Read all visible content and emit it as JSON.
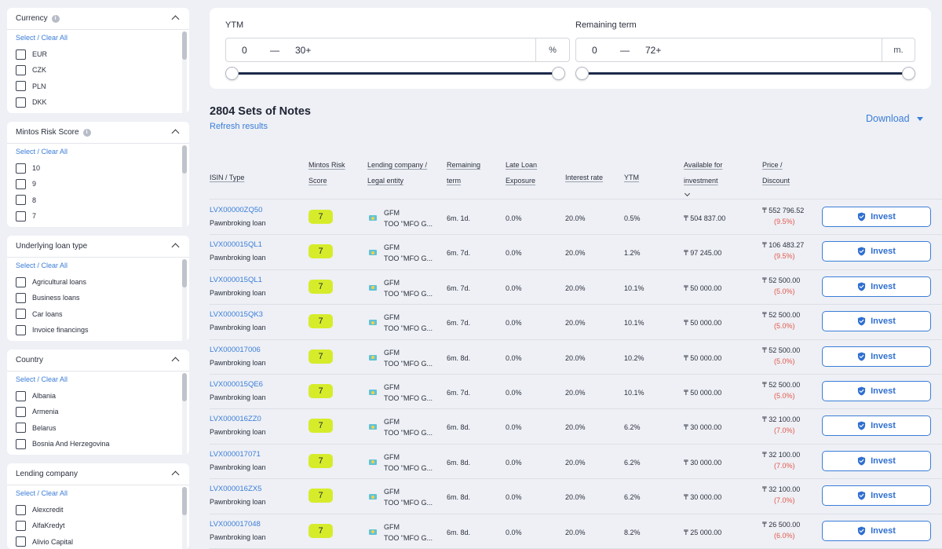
{
  "sidebar": {
    "select_clear": "Select / Clear All",
    "panels": [
      {
        "title": "Currency",
        "info": true,
        "items": [
          "EUR",
          "CZK",
          "PLN",
          "DKK"
        ]
      },
      {
        "title": "Mintos Risk Score",
        "info": true,
        "items": [
          "10",
          "9",
          "8",
          "7"
        ]
      },
      {
        "title": "Underlying loan type",
        "info": false,
        "items": [
          "Agricultural loans",
          "Business loans",
          "Car loans",
          "Invoice financings"
        ]
      },
      {
        "title": "Country",
        "info": false,
        "items": [
          "Albania",
          "Armenia",
          "Belarus",
          "Bosnia And Herzegovina"
        ]
      },
      {
        "title": "Lending company",
        "info": false,
        "items": [
          "Alexcredit",
          "AlfaKredyt",
          "Alivio Capital"
        ]
      }
    ]
  },
  "filters": {
    "ytm": {
      "label": "YTM",
      "from": "0",
      "dash": "—",
      "to": "30+",
      "unit": "%"
    },
    "term": {
      "label": "Remaining term",
      "from": "0",
      "dash": "—",
      "to": "72+",
      "unit": "m."
    }
  },
  "results": {
    "title": "2804 Sets of Notes",
    "refresh": "Refresh results",
    "download": "Download"
  },
  "table": {
    "headers": {
      "isin": "ISIN / Type",
      "score_1": "Mintos Risk",
      "score_2": "Score",
      "lender_1": "Lending company /",
      "lender_2": "Legal entity",
      "term_1": "Remaining",
      "term_2": "term",
      "late_1": "Late Loan",
      "late_2": "Exposure",
      "irate": "Interest rate",
      "ytm": "YTM",
      "avail_1": "Available for",
      "avail_2": "investment",
      "price_1": "Price /",
      "price_2": "Discount"
    },
    "invest_label": "Invest",
    "rows": [
      {
        "isin": "LVX00000ZQ50",
        "type": "Pawnbroking loan",
        "score": "7",
        "lender": "GFM",
        "legal": "TOO \"MFO G...",
        "term": "6m. 1d.",
        "late": "0.0%",
        "irate": "20.0%",
        "ytm": "0.5%",
        "avail": "₸ 504 837.00",
        "price": "₸ 552 796.52",
        "discount": "(9.5%)"
      },
      {
        "isin": "LVX000015QL1",
        "type": "Pawnbroking loan",
        "score": "7",
        "lender": "GFM",
        "legal": "TOO \"MFO G...",
        "term": "6m. 7d.",
        "late": "0.0%",
        "irate": "20.0%",
        "ytm": "1.2%",
        "avail": "₸ 97 245.00",
        "price": "₸ 106 483.27",
        "discount": "(9.5%)"
      },
      {
        "isin": "LVX000015QL1",
        "type": "Pawnbroking loan",
        "score": "7",
        "lender": "GFM",
        "legal": "TOO \"MFO G...",
        "term": "6m. 7d.",
        "late": "0.0%",
        "irate": "20.0%",
        "ytm": "10.1%",
        "avail": "₸ 50 000.00",
        "price": "₸ 52 500.00",
        "discount": "(5.0%)"
      },
      {
        "isin": "LVX000015QK3",
        "type": "Pawnbroking loan",
        "score": "7",
        "lender": "GFM",
        "legal": "TOO \"MFO G...",
        "term": "6m. 7d.",
        "late": "0.0%",
        "irate": "20.0%",
        "ytm": "10.1%",
        "avail": "₸ 50 000.00",
        "price": "₸ 52 500.00",
        "discount": "(5.0%)"
      },
      {
        "isin": "LVX000017006",
        "type": "Pawnbroking loan",
        "score": "7",
        "lender": "GFM",
        "legal": "TOO \"MFO G...",
        "term": "6m. 8d.",
        "late": "0.0%",
        "irate": "20.0%",
        "ytm": "10.2%",
        "avail": "₸ 50 000.00",
        "price": "₸ 52 500.00",
        "discount": "(5.0%)"
      },
      {
        "isin": "LVX000015QE6",
        "type": "Pawnbroking loan",
        "score": "7",
        "lender": "GFM",
        "legal": "TOO \"MFO G...",
        "term": "6m. 7d.",
        "late": "0.0%",
        "irate": "20.0%",
        "ytm": "10.1%",
        "avail": "₸ 50 000.00",
        "price": "₸ 52 500.00",
        "discount": "(5.0%)"
      },
      {
        "isin": "LVX000016ZZ0",
        "type": "Pawnbroking loan",
        "score": "7",
        "lender": "GFM",
        "legal": "TOO \"MFO G...",
        "term": "6m. 8d.",
        "late": "0.0%",
        "irate": "20.0%",
        "ytm": "6.2%",
        "avail": "₸ 30 000.00",
        "price": "₸ 32 100.00",
        "discount": "(7.0%)"
      },
      {
        "isin": "LVX000017071",
        "type": "Pawnbroking loan",
        "score": "7",
        "lender": "GFM",
        "legal": "TOO \"MFO G...",
        "term": "6m. 8d.",
        "late": "0.0%",
        "irate": "20.0%",
        "ytm": "6.2%",
        "avail": "₸ 30 000.00",
        "price": "₸ 32 100.00",
        "discount": "(7.0%)"
      },
      {
        "isin": "LVX000016ZX5",
        "type": "Pawnbroking loan",
        "score": "7",
        "lender": "GFM",
        "legal": "TOO \"MFO G...",
        "term": "6m. 8d.",
        "late": "0.0%",
        "irate": "20.0%",
        "ytm": "6.2%",
        "avail": "₸ 30 000.00",
        "price": "₸ 32 100.00",
        "discount": "(7.0%)"
      },
      {
        "isin": "LVX000017048",
        "type": "Pawnbroking loan",
        "score": "7",
        "lender": "GFM",
        "legal": "TOO \"MFO G...",
        "term": "6m. 8d.",
        "late": "0.0%",
        "irate": "20.0%",
        "ytm": "8.2%",
        "avail": "₸ 25 000.00",
        "price": "₸ 26 500.00",
        "discount": "(6.0%)"
      }
    ]
  },
  "colors": {
    "accent": "#3b7dd8",
    "score_badge": "#d6ec2b",
    "discount": "#e2574c",
    "slider": "#1d2a4a"
  }
}
